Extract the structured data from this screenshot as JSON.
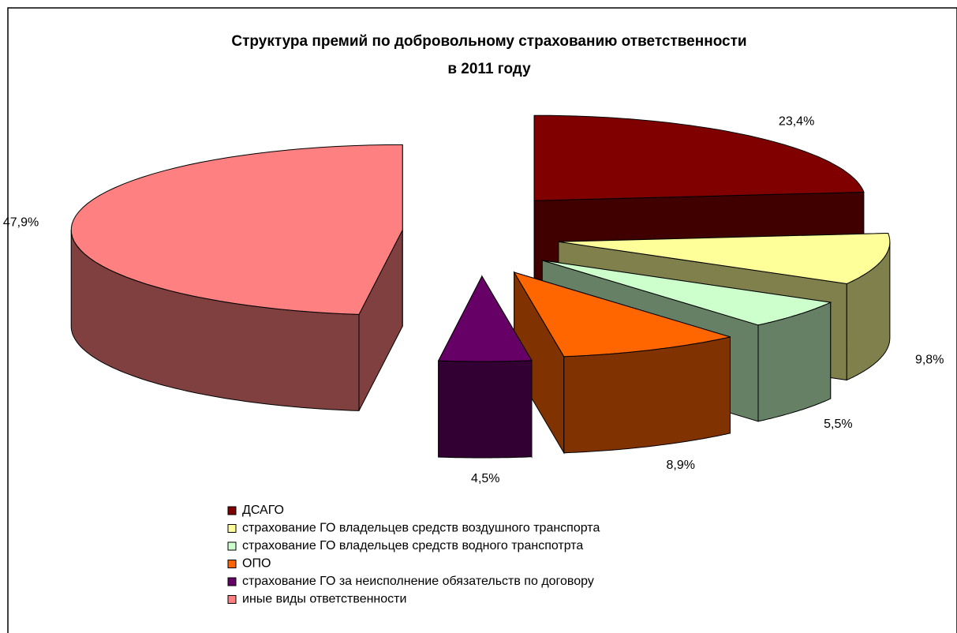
{
  "chart_data": {
    "type": "pie3d",
    "title": [
      "Структура премий по добровольному страхованию ответственности",
      "в 2011 году"
    ],
    "categories": [
      "ДСАГО",
      "страхование ГО владельцев средств воздушного транспорта",
      "страхование ГО владельцев средств водного транспотрта",
      "ОПО",
      "страхование ГО за неисполнение обязательств по договору",
      "иные виды ответственности"
    ],
    "values": [
      23.4,
      9.8,
      5.5,
      8.9,
      4.5,
      47.9
    ],
    "value_labels": [
      "23,4%",
      "9,8%",
      "5,5%",
      "8,9%",
      "4,5%",
      "47,9%"
    ],
    "colors": [
      "#800000",
      "#ffff99",
      "#ccffcc",
      "#ff6600",
      "#660066",
      "#ff8080"
    ],
    "legend": "bottom"
  }
}
